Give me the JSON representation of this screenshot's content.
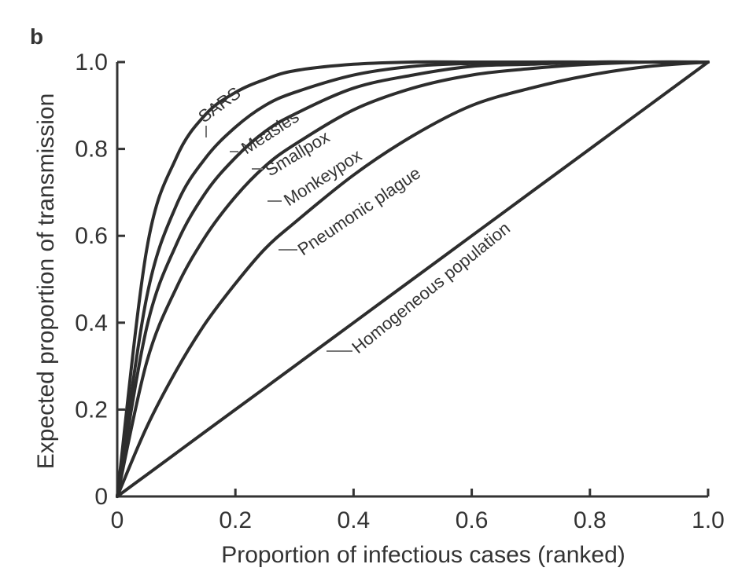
{
  "panel_label": "b",
  "chart_data": {
    "type": "line",
    "title": "",
    "xlabel": "Proportion of infectious cases (ranked)",
    "ylabel": "Expected proportion of transmission",
    "xlim": [
      0,
      1
    ],
    "ylim": [
      0,
      1
    ],
    "x_ticks": [
      0,
      0.2,
      0.4,
      0.6,
      0.8,
      1.0
    ],
    "x_tick_labels": [
      "0",
      "0.2",
      "0.4",
      "0.6",
      "0.8",
      "1.0"
    ],
    "y_ticks": [
      0,
      0.2,
      0.4,
      0.6,
      0.8,
      1.0
    ],
    "y_tick_labels": [
      "0",
      "0.2",
      "0.4",
      "0.6",
      "0.8",
      "1.0"
    ],
    "grid": false,
    "legend": "none",
    "x": [
      0,
      0.05,
      0.1,
      0.15,
      0.2,
      0.25,
      0.3,
      0.4,
      0.5,
      0.6,
      0.7,
      0.8,
      0.9,
      1.0
    ],
    "series": [
      {
        "name": "SARS",
        "values": [
          0,
          0.57,
          0.78,
          0.88,
          0.93,
          0.96,
          0.98,
          0.995,
          1.0,
          1.0,
          1.0,
          1.0,
          1.0,
          1.0
        ]
      },
      {
        "name": "Measles",
        "values": [
          0,
          0.46,
          0.67,
          0.78,
          0.85,
          0.9,
          0.93,
          0.97,
          0.99,
          0.997,
          1.0,
          1.0,
          1.0,
          1.0
        ]
      },
      {
        "name": "Smallpox",
        "values": [
          0,
          0.39,
          0.58,
          0.7,
          0.78,
          0.84,
          0.88,
          0.94,
          0.97,
          0.99,
          0.995,
          1.0,
          1.0,
          1.0
        ]
      },
      {
        "name": "Monkeypox",
        "values": [
          0,
          0.31,
          0.48,
          0.6,
          0.69,
          0.76,
          0.81,
          0.89,
          0.94,
          0.97,
          0.985,
          0.995,
          1.0,
          1.0
        ]
      },
      {
        "name": "Pneumonic plague",
        "values": [
          0,
          0.16,
          0.29,
          0.4,
          0.49,
          0.57,
          0.63,
          0.74,
          0.83,
          0.9,
          0.94,
          0.97,
          0.99,
          1.0
        ]
      },
      {
        "name": "Homogeneous population",
        "values": [
          0,
          0.05,
          0.1,
          0.15,
          0.2,
          0.25,
          0.3,
          0.4,
          0.5,
          0.6,
          0.7,
          0.8,
          0.9,
          1.0
        ]
      }
    ]
  }
}
